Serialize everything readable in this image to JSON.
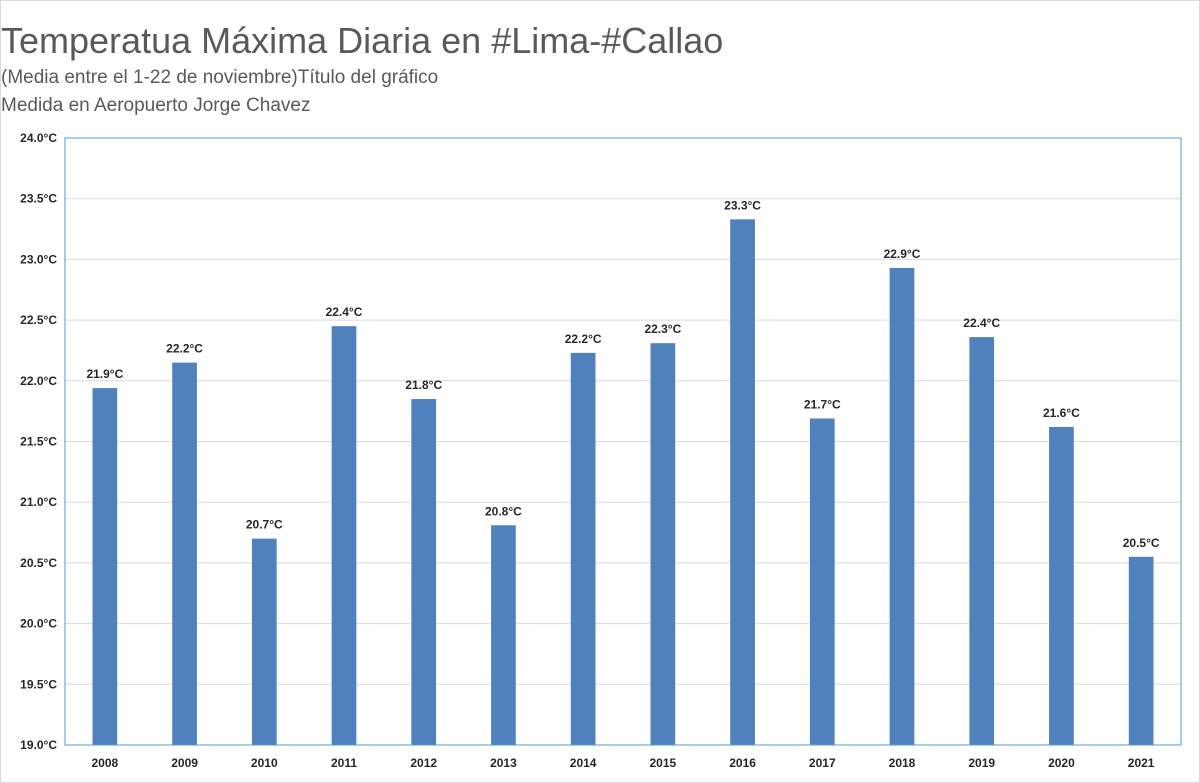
{
  "chart_data": {
    "type": "bar",
    "title": "Temperatua Máxima Diaria en #Lima-#Callao",
    "subtitle": "(Media entre el 1-22 de noviembre)Título del gráfico",
    "subtitle2": "Medida en Aeropuerto Jorge Chavez",
    "xlabel": "",
    "ylabel": "",
    "categories": [
      "2008",
      "2009",
      "2010",
      "2011",
      "2012",
      "2013",
      "2014",
      "2015",
      "2016",
      "2017",
      "2018",
      "2019",
      "2020",
      "2021"
    ],
    "values": [
      21.94,
      22.15,
      20.7,
      22.45,
      21.85,
      20.81,
      22.23,
      22.31,
      23.33,
      21.69,
      22.93,
      22.36,
      21.62,
      20.55
    ],
    "data_labels": [
      "21.9°C",
      "22.2°C",
      "20.7°C",
      "22.4°C",
      "21.8°C",
      "20.8°C",
      "22.2°C",
      "22.3°C",
      "23.3°C",
      "21.7°C",
      "22.9°C",
      "22.4°C",
      "21.6°C",
      "20.5°C"
    ],
    "ylim": [
      19.0,
      24.0
    ],
    "yticks": [
      19.0,
      19.5,
      20.0,
      20.5,
      21.0,
      21.5,
      22.0,
      22.5,
      23.0,
      23.5,
      24.0
    ],
    "ytick_labels": [
      "19.0°C",
      "19.5°C",
      "20.0°C",
      "20.5°C",
      "21.0°C",
      "21.5°C",
      "22.0°C",
      "22.5°C",
      "23.0°C",
      "23.5°C",
      "24.0°C"
    ],
    "grid": true,
    "legend": "none",
    "colors": {
      "bar": "#4f81bd",
      "grid": "#d9d9d9",
      "plot_border": "#4f9ad8",
      "text": "#262626",
      "title": "#595959"
    }
  }
}
